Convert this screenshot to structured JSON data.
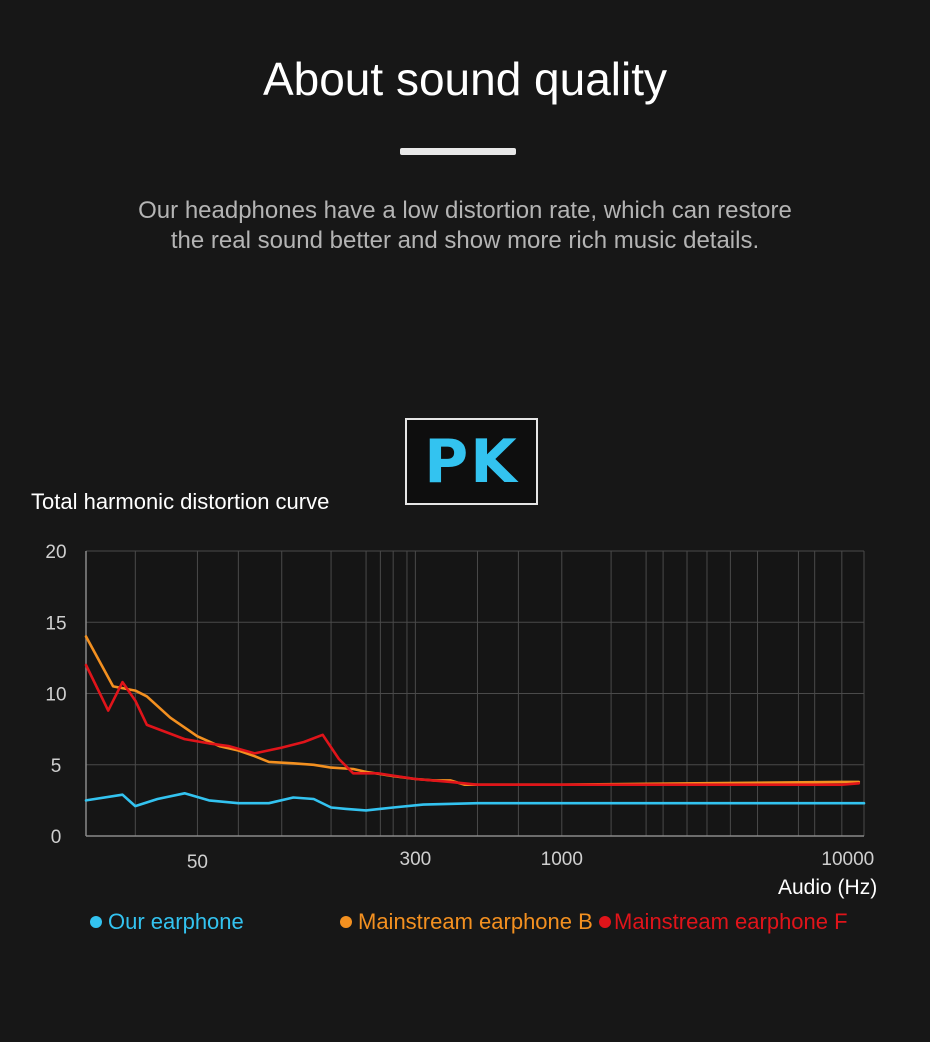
{
  "header": {
    "title": "About sound quality",
    "subtitle_line1": "Our headphones have a low distortion rate, which can restore",
    "subtitle_line2": "the real sound better and show more rich music details."
  },
  "badge": {
    "text": "PK",
    "color": "#33c3f0"
  },
  "chart_data": {
    "type": "line",
    "title": "Total harmonic distortion curve",
    "xlabel": "Audio (Hz)",
    "ylabel": "",
    "x_scale": "log",
    "xlim": [
      20,
      12000
    ],
    "ylim": [
      0,
      20
    ],
    "grid": true,
    "legend_position": "bottom",
    "y_ticks": [
      0,
      5,
      10,
      15,
      20
    ],
    "x_tick_labels": [
      {
        "value": 50,
        "label": "50"
      },
      {
        "value": 300,
        "label": "300"
      },
      {
        "value": 1000,
        "label": "1000"
      },
      {
        "value": 10000,
        "label": "10000"
      }
    ],
    "x_gridlines": [
      20,
      30,
      50,
      70,
      100,
      150,
      200,
      225,
      250,
      280,
      300,
      500,
      700,
      1000,
      1500,
      2000,
      2300,
      2800,
      3300,
      4000,
      5000,
      7000,
      8000,
      10000,
      12000
    ],
    "series": [
      {
        "name": "Our earphone",
        "color": "#33c3f0",
        "points": [
          [
            20,
            2.5
          ],
          [
            27,
            2.9
          ],
          [
            30,
            2.1
          ],
          [
            36,
            2.6
          ],
          [
            45,
            3.0
          ],
          [
            55,
            2.5
          ],
          [
            70,
            2.3
          ],
          [
            90,
            2.3
          ],
          [
            110,
            2.7
          ],
          [
            130,
            2.6
          ],
          [
            150,
            2.0
          ],
          [
            170,
            1.9
          ],
          [
            200,
            1.8
          ],
          [
            250,
            2.0
          ],
          [
            320,
            2.2
          ],
          [
            500,
            2.3
          ],
          [
            1000,
            2.3
          ],
          [
            3000,
            2.3
          ],
          [
            10000,
            2.3
          ],
          [
            12000,
            2.3
          ]
        ]
      },
      {
        "name": "Mainstream earphone B",
        "color": "#f39020",
        "points": [
          [
            20,
            14.0
          ],
          [
            25,
            10.5
          ],
          [
            30,
            10.2
          ],
          [
            33,
            9.8
          ],
          [
            40,
            8.3
          ],
          [
            50,
            7.0
          ],
          [
            60,
            6.3
          ],
          [
            70,
            6.0
          ],
          [
            80,
            5.6
          ],
          [
            90,
            5.2
          ],
          [
            110,
            5.1
          ],
          [
            130,
            5.0
          ],
          [
            150,
            4.8
          ],
          [
            180,
            4.7
          ],
          [
            200,
            4.5
          ],
          [
            250,
            4.2
          ],
          [
            300,
            4.0
          ],
          [
            350,
            3.9
          ],
          [
            400,
            3.9
          ],
          [
            450,
            3.6
          ],
          [
            500,
            3.6
          ],
          [
            1000,
            3.6
          ],
          [
            3000,
            3.7
          ],
          [
            10000,
            3.8
          ],
          [
            11500,
            3.8
          ]
        ]
      },
      {
        "name": "Mainstream earphone F",
        "color": "#e0141a",
        "points": [
          [
            20,
            12.0
          ],
          [
            24,
            8.8
          ],
          [
            27,
            10.8
          ],
          [
            30,
            9.5
          ],
          [
            33,
            7.8
          ],
          [
            45,
            6.8
          ],
          [
            55,
            6.5
          ],
          [
            65,
            6.3
          ],
          [
            80,
            5.8
          ],
          [
            100,
            6.2
          ],
          [
            120,
            6.6
          ],
          [
            140,
            7.1
          ],
          [
            160,
            5.4
          ],
          [
            180,
            4.4
          ],
          [
            220,
            4.4
          ],
          [
            300,
            4.0
          ],
          [
            400,
            3.8
          ],
          [
            500,
            3.6
          ],
          [
            1000,
            3.6
          ],
          [
            3000,
            3.6
          ],
          [
            10000,
            3.6
          ],
          [
            11500,
            3.7
          ]
        ]
      }
    ]
  }
}
